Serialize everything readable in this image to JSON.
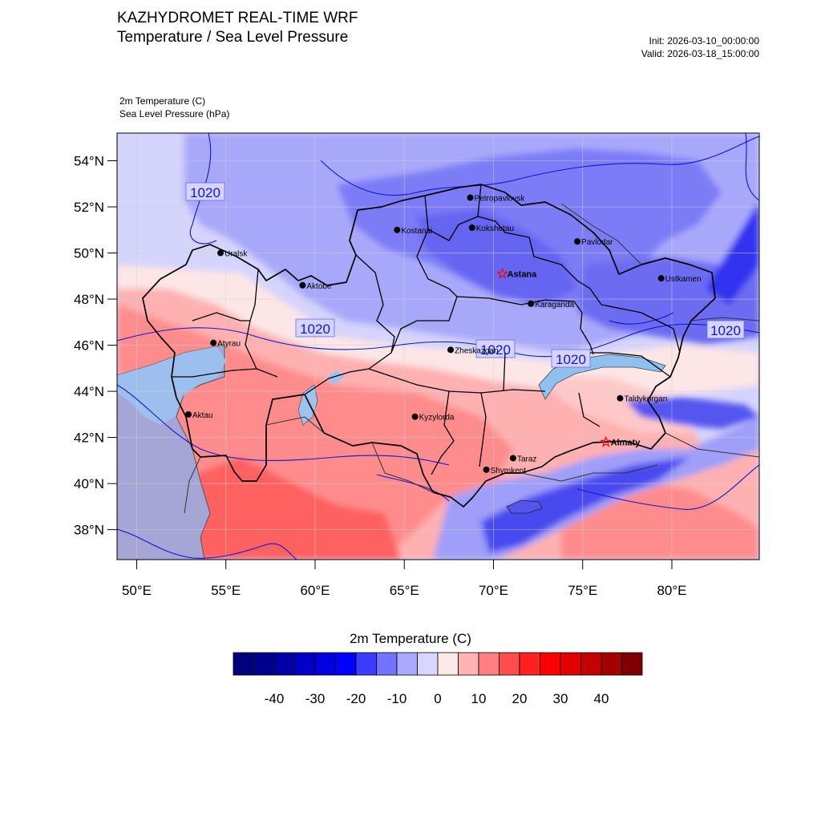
{
  "header": {
    "title": "KAZHYDROMET REAL-TIME WRF",
    "subtitle": "Temperature / Sea Level Pressure",
    "init": "Init: 2026-03-10_00:00:00",
    "valid": "Valid: 2026-03-18_15:00:00",
    "field_temperature": "2m Temperature   (C)",
    "field_pressure": "Sea Level Pressure   (hPa)"
  },
  "map": {
    "lat_labels": [
      "54°N",
      "52°N",
      "50°N",
      "48°N",
      "46°N",
      "44°N",
      "42°N",
      "40°N",
      "38°N"
    ],
    "lat_values": [
      54,
      52,
      50,
      48,
      46,
      44,
      42,
      40,
      38
    ],
    "lon_labels": [
      "50°E",
      "55°E",
      "60°E",
      "65°E",
      "70°E",
      "75°E",
      "80°E"
    ],
    "lon_values": [
      50,
      55,
      60,
      65,
      70,
      75,
      80
    ],
    "extent": {
      "lon_min": 48.9,
      "lon_max": 84.9,
      "lat_min": 36.7,
      "lat_max": 55.2
    },
    "isobar_labels": [
      "1020",
      "1020",
      "1020",
      "1020",
      "1020"
    ],
    "cities": [
      {
        "name": "Petropavlovsk",
        "lon": 68.7,
        "lat": 52.4,
        "marker": "dot"
      },
      {
        "name": "Kostanai",
        "lon": 64.6,
        "lat": 51.0,
        "marker": "dot"
      },
      {
        "name": "Kokshetau",
        "lon": 68.8,
        "lat": 51.1,
        "marker": "dot"
      },
      {
        "name": "Pavlodar",
        "lon": 74.7,
        "lat": 50.5,
        "marker": "dot"
      },
      {
        "name": "Uralsk",
        "lon": 54.7,
        "lat": 50.0,
        "marker": "dot"
      },
      {
        "name": "Astana",
        "lon": 70.5,
        "lat": 49.1,
        "marker": "star"
      },
      {
        "name": "Ustkamen",
        "lon": 79.4,
        "lat": 48.9,
        "marker": "dot"
      },
      {
        "name": "Aktobe",
        "lon": 59.3,
        "lat": 48.6,
        "marker": "dot"
      },
      {
        "name": "Karaganda",
        "lon": 72.1,
        "lat": 47.8,
        "marker": "dot"
      },
      {
        "name": "Atyrau",
        "lon": 54.3,
        "lat": 46.1,
        "marker": "dot"
      },
      {
        "name": "Zheskazgan",
        "lon": 67.6,
        "lat": 45.8,
        "marker": "dot"
      },
      {
        "name": "Taldykorgan",
        "lon": 77.1,
        "lat": 43.7,
        "marker": "dot"
      },
      {
        "name": "Aktau",
        "lon": 52.9,
        "lat": 43.0,
        "marker": "dot"
      },
      {
        "name": "Kyzylorda",
        "lon": 65.6,
        "lat": 42.9,
        "marker": "dot"
      },
      {
        "name": "Almaty",
        "lon": 76.3,
        "lat": 41.8,
        "marker": "star"
      },
      {
        "name": "Taraz",
        "lon": 71.1,
        "lat": 41.1,
        "marker": "dot"
      },
      {
        "name": "Shymkent",
        "lon": 69.6,
        "lat": 40.6,
        "marker": "dot"
      }
    ]
  },
  "colorbar": {
    "title": "2m Temperature  (C)",
    "tick_labels": [
      "-40",
      "-30",
      "-20",
      "-10",
      "0",
      "10",
      "20",
      "30",
      "40"
    ],
    "colors": [
      "#00007f",
      "#00008f",
      "#0000a9",
      "#0000c6",
      "#0000e2",
      "#0000ff",
      "#3c3cff",
      "#7373ff",
      "#a9a9ff",
      "#d6d6ff",
      "#fde8e8",
      "#ffb3b3",
      "#ff7f7f",
      "#ff4c4c",
      "#ff2020",
      "#ff0000",
      "#e20000",
      "#c40000",
      "#a50000",
      "#7f0000"
    ],
    "series_colors": {
      "marker": "#000000",
      "star": "#ff0000",
      "isobar": "#0000ff"
    }
  }
}
